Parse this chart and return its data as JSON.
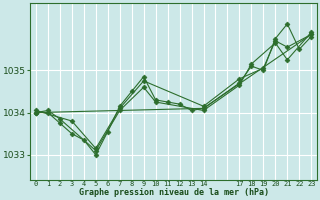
{
  "title": "Graphe pression niveau de la mer (hPa)",
  "bg_color": "#cce8e8",
  "grid_color": "#ffffff",
  "line_color": "#2d6e2d",
  "marker_color": "#2d6e2d",
  "ylim": [
    1032.4,
    1036.6
  ],
  "yticks": [
    1033,
    1034,
    1035
  ],
  "xlim": [
    -0.5,
    23.5
  ],
  "x_tick_labels": [
    "0",
    "1",
    "2",
    "3",
    "4",
    "5",
    "6",
    "7",
    "8",
    "9",
    "10",
    "11",
    "12",
    "13",
    "14",
    "17",
    "18",
    "19",
    "20",
    "21",
    "22",
    "23"
  ],
  "series": [
    [
      [
        0,
        1034.0
      ],
      [
        1,
        1034.0
      ],
      [
        2,
        1033.75
      ],
      [
        3,
        1033.5
      ],
      [
        4,
        1033.35
      ],
      [
        5,
        1033.0
      ],
      [
        6,
        1033.55
      ],
      [
        7,
        1034.15
      ],
      [
        8,
        1034.5
      ],
      [
        9,
        1034.85
      ],
      [
        10,
        1034.3
      ],
      [
        11,
        1034.25
      ],
      [
        12,
        1034.2
      ],
      [
        13,
        1034.05
      ],
      [
        14,
        1034.1
      ],
      [
        17,
        1034.7
      ],
      [
        18,
        1035.1
      ],
      [
        19,
        1035.0
      ],
      [
        20,
        1035.75
      ],
      [
        21,
        1036.1
      ],
      [
        22,
        1035.5
      ],
      [
        23,
        1035.8
      ]
    ],
    [
      [
        0,
        1034.05
      ],
      [
        3,
        1033.8
      ],
      [
        5,
        1033.15
      ],
      [
        7,
        1034.1
      ],
      [
        9,
        1034.75
      ],
      [
        14,
        1034.15
      ],
      [
        17,
        1034.8
      ],
      [
        19,
        1035.05
      ],
      [
        20,
        1035.7
      ],
      [
        21,
        1035.55
      ],
      [
        23,
        1035.85
      ]
    ],
    [
      [
        0,
        1034.0
      ],
      [
        1,
        1034.05
      ],
      [
        2,
        1033.85
      ],
      [
        5,
        1033.1
      ],
      [
        7,
        1034.05
      ],
      [
        9,
        1034.6
      ],
      [
        10,
        1034.25
      ],
      [
        14,
        1034.05
      ],
      [
        17,
        1034.65
      ],
      [
        18,
        1035.15
      ],
      [
        20,
        1035.65
      ],
      [
        21,
        1035.25
      ],
      [
        23,
        1035.9
      ]
    ],
    [
      [
        0,
        1034.0
      ],
      [
        14,
        1034.1
      ],
      [
        23,
        1035.85
      ]
    ]
  ]
}
